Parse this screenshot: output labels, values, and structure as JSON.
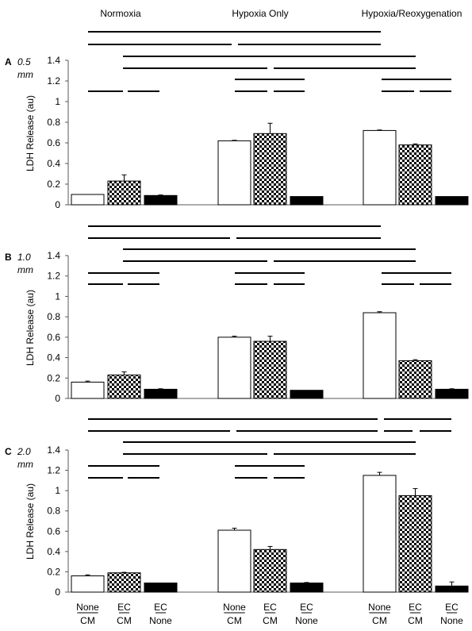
{
  "conditions": [
    "Normoxia",
    "Hypoxia Only",
    "Hypoxia/Reoxygenation"
  ],
  "category_labels": [
    {
      "top": "None",
      "bottom": "CM"
    },
    {
      "top": "EC",
      "bottom": "CM"
    },
    {
      "top": "EC",
      "bottom": "None"
    }
  ],
  "colors": {
    "axis": "#595959",
    "bar_outline": "#000000",
    "open_bar": "#ffffff",
    "checker_bar": "checker black/white",
    "solid_bar": "#000000",
    "sig_line": "#000000"
  },
  "chart_data": [
    {
      "type": "bar",
      "panel": "A",
      "distance": "0.5 mm",
      "ylabel": "LDH Release (au)",
      "ylim": [
        0,
        1.4
      ],
      "yticks": [
        "0",
        "0.2",
        "0.4",
        "0.6",
        "0.8",
        "1",
        "1.2",
        "1.4"
      ],
      "groups": [
        "Normoxia",
        "Hypoxia Only",
        "Hypoxia/Reoxygenation"
      ],
      "series": [
        {
          "label": "None CM",
          "pattern": "open",
          "values": [
            0.1,
            0.62,
            0.72
          ],
          "errors": [
            0.0,
            0.005,
            0.005
          ]
        },
        {
          "label": "EC CM",
          "pattern": "checker",
          "values": [
            0.23,
            0.69,
            0.58
          ],
          "errors": [
            0.06,
            0.1,
            0.01
          ]
        },
        {
          "label": "EC None",
          "pattern": "solid",
          "values": [
            0.09,
            0.08,
            0.08
          ],
          "errors": [
            0.005,
            0.0,
            0.0
          ]
        }
      ]
    },
    {
      "type": "bar",
      "panel": "B",
      "distance": "1.0 mm",
      "ylabel": "LDH Release (au)",
      "ylim": [
        0,
        1.4
      ],
      "yticks": [
        "0",
        "0.2",
        "0.4",
        "0.6",
        "0.8",
        "1",
        "1.2",
        "1.4"
      ],
      "groups": [
        "Normoxia",
        "Hypoxia Only",
        "Hypoxia/Reoxygenation"
      ],
      "series": [
        {
          "label": "None CM",
          "pattern": "open",
          "values": [
            0.16,
            0.6,
            0.84
          ],
          "errors": [
            0.01,
            0.01,
            0.01
          ]
        },
        {
          "label": "EC CM",
          "pattern": "checker",
          "values": [
            0.23,
            0.56,
            0.37
          ],
          "errors": [
            0.03,
            0.05,
            0.01
          ]
        },
        {
          "label": "EC None",
          "pattern": "solid",
          "values": [
            0.09,
            0.08,
            0.09
          ],
          "errors": [
            0.005,
            0.0,
            0.005
          ]
        }
      ]
    },
    {
      "type": "bar",
      "panel": "C",
      "distance": "2.0 mm",
      "ylabel": "LDH Release (au)",
      "ylim": [
        0,
        1.4
      ],
      "yticks": [
        "0",
        "0.2",
        "0.4",
        "0.6",
        "0.8",
        "1",
        "1.2",
        "1.4"
      ],
      "groups": [
        "Normoxia",
        "Hypoxia Only",
        "Hypoxia/Reoxygenation"
      ],
      "series": [
        {
          "label": "None CM",
          "pattern": "open",
          "values": [
            0.16,
            0.61,
            1.15
          ],
          "errors": [
            0.01,
            0.02,
            0.03
          ]
        },
        {
          "label": "EC CM",
          "pattern": "checker",
          "values": [
            0.19,
            0.42,
            0.95
          ],
          "errors": [
            0.005,
            0.03,
            0.07
          ]
        },
        {
          "label": "EC None",
          "pattern": "solid",
          "values": [
            0.09,
            0.09,
            0.06
          ],
          "errors": [
            0.0,
            0.005,
            0.04
          ]
        }
      ]
    }
  ]
}
